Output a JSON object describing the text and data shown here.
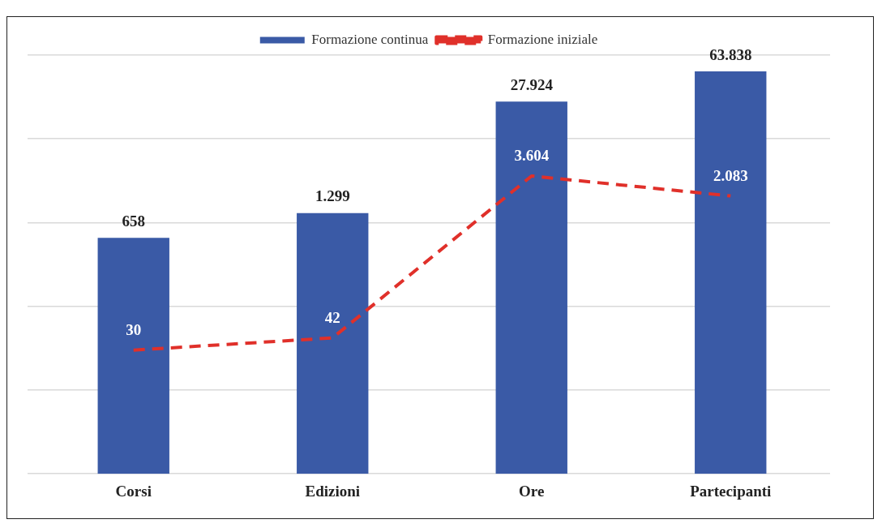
{
  "chart_data": {
    "type": "bar",
    "categories": [
      "Corsi",
      "Edizioni",
      "Ore",
      "Partecipanti"
    ],
    "series": [
      {
        "name": "Formazione continua",
        "color": "#3a5aa6",
        "values": [
          658,
          1299,
          27924,
          63838
        ],
        "value_labels": [
          "658",
          "1.299",
          "27.924",
          "63.838"
        ]
      },
      {
        "name": "Formazione iniziale",
        "type": "line",
        "color": "#e0302a",
        "line_style": "dashed",
        "marker": "none",
        "values": [
          30,
          42,
          3604,
          2083
        ],
        "value_labels": [
          "30",
          "42",
          "3.604",
          "2.083"
        ]
      }
    ],
    "log": true,
    "ylim": [
      1,
      100000
    ],
    "yticks": [
      {
        "value": 1,
        "label": null
      },
      {
        "value": 10,
        "label": null
      },
      {
        "value": 100,
        "label": null
      },
      {
        "value": 1000,
        "label": null
      },
      {
        "value": 10000,
        "label": null
      },
      {
        "value": 100000,
        "label": null
      }
    ],
    "tick_labels": "x",
    "grid": "y",
    "legend": "top"
  }
}
